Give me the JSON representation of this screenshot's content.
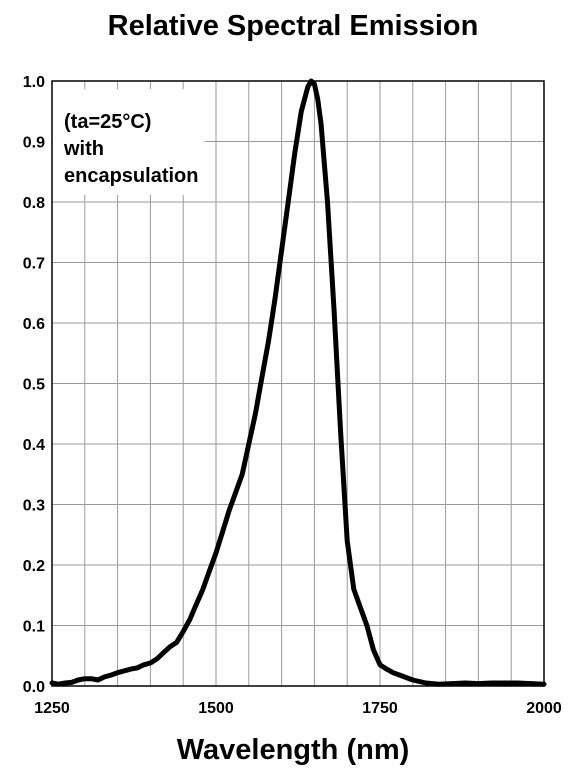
{
  "chart_data": {
    "type": "line",
    "title": "Relative Spectral Emission",
    "xlabel": "Wavelength (nm)",
    "ylabel": "",
    "xlim": [
      1250,
      2000
    ],
    "ylim": [
      0,
      1
    ],
    "grid": true,
    "x_ticks": [
      "1250",
      "1500",
      "1750",
      "2000"
    ],
    "y_ticks": [
      "0.0",
      "0.1",
      "0.2",
      "0.3",
      "0.4",
      "0.5",
      "0.6",
      "0.7",
      "0.8",
      "0.9",
      "1.0"
    ],
    "annotation": [
      "(ta=25°C)",
      "with",
      "encapsulation"
    ],
    "line_color": "#000000",
    "series": [
      {
        "x": [
          1250,
          1260,
          1270,
          1280,
          1290,
          1300,
          1310,
          1320,
          1330,
          1340,
          1350,
          1360,
          1370,
          1380,
          1390,
          1400,
          1410,
          1420,
          1430,
          1440,
          1450,
          1460,
          1470,
          1480,
          1490,
          1500,
          1510,
          1520,
          1530,
          1540,
          1550,
          1560,
          1570,
          1580,
          1590,
          1600,
          1610,
          1620,
          1630,
          1640,
          1645,
          1650,
          1655,
          1660,
          1670,
          1680,
          1690,
          1700,
          1710,
          1720,
          1730,
          1740,
          1750,
          1760,
          1770,
          1780,
          1800,
          1820,
          1840,
          1860,
          1880,
          1900,
          1920,
          1940,
          1960,
          1980,
          2000
        ],
        "y": [
          0.005,
          0.003,
          0.005,
          0.006,
          0.01,
          0.012,
          0.012,
          0.01,
          0.015,
          0.018,
          0.022,
          0.025,
          0.028,
          0.03,
          0.035,
          0.038,
          0.045,
          0.055,
          0.065,
          0.072,
          0.09,
          0.11,
          0.135,
          0.16,
          0.19,
          0.22,
          0.255,
          0.29,
          0.32,
          0.35,
          0.4,
          0.45,
          0.51,
          0.57,
          0.64,
          0.72,
          0.8,
          0.88,
          0.95,
          0.99,
          1.0,
          0.995,
          0.97,
          0.93,
          0.8,
          0.62,
          0.42,
          0.24,
          0.16,
          0.13,
          0.1,
          0.06,
          0.035,
          0.028,
          0.022,
          0.018,
          0.01,
          0.005,
          0.003,
          0.004,
          0.005,
          0.004,
          0.005,
          0.005,
          0.005,
          0.004,
          0.003
        ]
      }
    ]
  }
}
